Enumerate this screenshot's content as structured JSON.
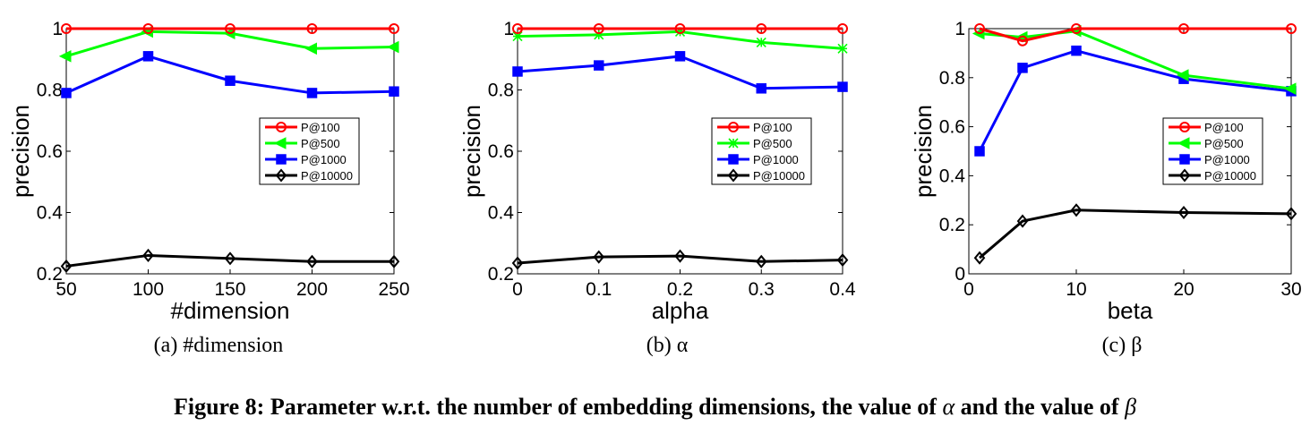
{
  "figure_caption": {
    "prefix": "Figure 8: Parameter w.r.t. the number of embedding dimensions, the value of ",
    "sym_alpha": "α",
    "middle": " and the value of ",
    "sym_beta": "β"
  },
  "chart_data": [
    {
      "type": "line",
      "subcaption": "(a) #dimension",
      "xlabel": "#dimension",
      "ylabel": "precision",
      "x": [
        50,
        100,
        150,
        200,
        250
      ],
      "xticks": [
        50,
        100,
        150,
        200,
        250
      ],
      "xtick_labels": [
        "50",
        "100",
        "150",
        "200",
        "250"
      ],
      "xlim": [
        50,
        250
      ],
      "ylim": [
        0.2,
        1.0
      ],
      "yticks": [
        0.2,
        0.4,
        0.6,
        0.8,
        1.0
      ],
      "ytick_labels": [
        "0.2",
        "0.4",
        "0.6",
        "0.8",
        "1"
      ],
      "legend_position": "center-right",
      "series": [
        {
          "name": "P@100",
          "color": "#ff0000",
          "marker": "circle",
          "values": [
            1.0,
            1.0,
            1.0,
            1.0,
            1.0
          ]
        },
        {
          "name": "P@500",
          "color": "#00ff00",
          "marker": "triangle-left",
          "values": [
            0.91,
            0.99,
            0.985,
            0.935,
            0.94
          ]
        },
        {
          "name": "P@1000",
          "color": "#0000ff",
          "marker": "square",
          "values": [
            0.79,
            0.91,
            0.83,
            0.79,
            0.795
          ]
        },
        {
          "name": "P@10000",
          "color": "#000000",
          "marker": "diamond",
          "values": [
            0.225,
            0.26,
            0.25,
            0.24,
            0.24
          ]
        }
      ]
    },
    {
      "type": "line",
      "subcaption": "(b) α",
      "xlabel": "alpha",
      "ylabel": "precision",
      "x": [
        0,
        0.1,
        0.2,
        0.3,
        0.4
      ],
      "xticks": [
        0,
        0.1,
        0.2,
        0.3,
        0.4
      ],
      "xtick_labels": [
        "0",
        "0.1",
        "0.2",
        "0.3",
        "0.4"
      ],
      "xlim": [
        0,
        0.4
      ],
      "ylim": [
        0.2,
        1.0
      ],
      "yticks": [
        0.2,
        0.4,
        0.6,
        0.8,
        1.0
      ],
      "ytick_labels": [
        "0.2",
        "0.4",
        "0.6",
        "0.8",
        "1"
      ],
      "legend_position": "center-right",
      "series": [
        {
          "name": "P@100",
          "color": "#ff0000",
          "marker": "circle",
          "values": [
            1.0,
            1.0,
            1.0,
            1.0,
            1.0
          ]
        },
        {
          "name": "P@500",
          "color": "#00ff00",
          "marker": "star",
          "values": [
            0.975,
            0.98,
            0.99,
            0.955,
            0.935
          ]
        },
        {
          "name": "P@1000",
          "color": "#0000ff",
          "marker": "square",
          "values": [
            0.86,
            0.88,
            0.91,
            0.805,
            0.81
          ]
        },
        {
          "name": "P@10000",
          "color": "#000000",
          "marker": "diamond",
          "values": [
            0.235,
            0.255,
            0.258,
            0.24,
            0.245
          ]
        }
      ]
    },
    {
      "type": "line",
      "subcaption": "(c) β",
      "xlabel": "beta",
      "ylabel": "precision",
      "x": [
        1,
        5,
        10,
        20,
        30
      ],
      "xticks": [
        0,
        10,
        20,
        30
      ],
      "xtick_labels": [
        "0",
        "10",
        "20",
        "30"
      ],
      "xlim": [
        0,
        30
      ],
      "ylim": [
        0,
        1.0
      ],
      "yticks": [
        0,
        0.2,
        0.4,
        0.6,
        0.8,
        1.0
      ],
      "ytick_labels": [
        "0",
        "0.2",
        "0.4",
        "0.6",
        "0.8",
        "1"
      ],
      "legend_position": "center-right",
      "series": [
        {
          "name": "P@100",
          "color": "#ff0000",
          "marker": "circle",
          "values": [
            1.0,
            0.95,
            1.0,
            1.0,
            1.0
          ]
        },
        {
          "name": "P@500",
          "color": "#00ff00",
          "marker": "triangle-left",
          "values": [
            0.98,
            0.965,
            0.99,
            0.81,
            0.755
          ]
        },
        {
          "name": "P@1000",
          "color": "#0000ff",
          "marker": "square",
          "values": [
            0.5,
            0.84,
            0.91,
            0.795,
            0.745
          ]
        },
        {
          "name": "P@10000",
          "color": "#000000",
          "marker": "diamond",
          "values": [
            0.065,
            0.215,
            0.26,
            0.25,
            0.245
          ]
        }
      ]
    }
  ]
}
